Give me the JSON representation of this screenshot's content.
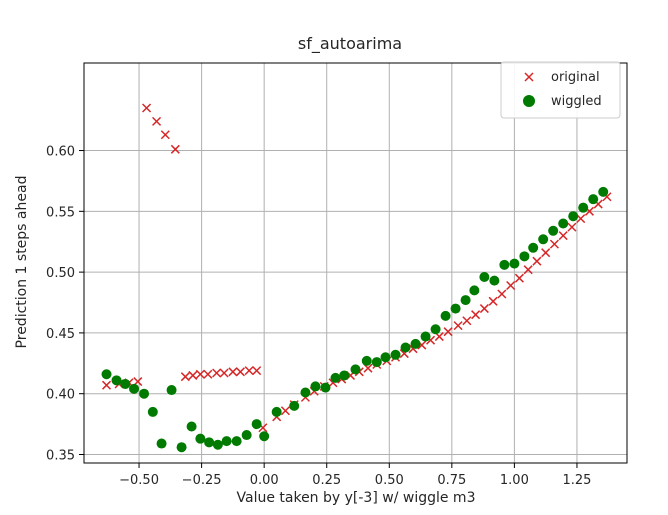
{
  "chart_data": {
    "type": "scatter",
    "title": "sf_autoarima",
    "xlabel": "Value taken by y[-3] w/ wiggle m3",
    "ylabel": "Prediction 1 steps ahead",
    "xlim": [
      -0.72,
      1.45
    ],
    "ylim": [
      0.343,
      0.672
    ],
    "xticks": [
      -0.5,
      -0.25,
      0.0,
      0.25,
      0.5,
      0.75,
      1.0,
      1.25
    ],
    "xtick_labels": [
      "−0.50",
      "−0.25",
      "0.00",
      "0.25",
      "0.50",
      "0.75",
      "1.00",
      "1.25"
    ],
    "yticks": [
      0.35,
      0.4,
      0.45,
      0.5,
      0.55,
      0.6
    ],
    "ytick_labels": [
      "0.35",
      "0.40",
      "0.45",
      "0.50",
      "0.55",
      "0.60"
    ],
    "grid": true,
    "legend_position": "top-right",
    "series": [
      {
        "name": "original",
        "marker": "x",
        "color": "#d62728",
        "points": [
          [
            -0.63,
            0.407
          ],
          [
            -0.58,
            0.408
          ],
          [
            -0.54,
            0.409
          ],
          [
            -0.505,
            0.41
          ],
          [
            -0.47,
            0.635
          ],
          [
            -0.43,
            0.624
          ],
          [
            -0.395,
            0.613
          ],
          [
            -0.355,
            0.601
          ],
          [
            -0.315,
            0.414
          ],
          [
            -0.285,
            0.415
          ],
          [
            -0.255,
            0.416
          ],
          [
            -0.225,
            0.416
          ],
          [
            -0.19,
            0.417
          ],
          [
            -0.16,
            0.417
          ],
          [
            -0.125,
            0.418
          ],
          [
            -0.095,
            0.418
          ],
          [
            -0.06,
            0.419
          ],
          [
            -0.03,
            0.419
          ],
          [
            -0.005,
            0.372
          ],
          [
            0.05,
            0.381
          ],
          [
            0.085,
            0.386
          ],
          [
            0.12,
            0.391
          ],
          [
            0.165,
            0.397
          ],
          [
            0.2,
            0.402
          ],
          [
            0.24,
            0.406
          ],
          [
            0.275,
            0.409
          ],
          [
            0.31,
            0.412
          ],
          [
            0.345,
            0.415
          ],
          [
            0.38,
            0.418
          ],
          [
            0.415,
            0.421
          ],
          [
            0.45,
            0.424
          ],
          [
            0.49,
            0.427
          ],
          [
            0.525,
            0.43
          ],
          [
            0.56,
            0.433
          ],
          [
            0.595,
            0.437
          ],
          [
            0.63,
            0.44
          ],
          [
            0.665,
            0.444
          ],
          [
            0.7,
            0.447
          ],
          [
            0.735,
            0.451
          ],
          [
            0.775,
            0.456
          ],
          [
            0.81,
            0.46
          ],
          [
            0.845,
            0.465
          ],
          [
            0.88,
            0.47
          ],
          [
            0.915,
            0.476
          ],
          [
            0.95,
            0.482
          ],
          [
            0.985,
            0.489
          ],
          [
            1.02,
            0.495
          ],
          [
            1.055,
            0.502
          ],
          [
            1.09,
            0.509
          ],
          [
            1.125,
            0.516
          ],
          [
            1.16,
            0.523
          ],
          [
            1.195,
            0.53
          ],
          [
            1.23,
            0.537
          ],
          [
            1.265,
            0.544
          ],
          [
            1.3,
            0.55
          ],
          [
            1.335,
            0.556
          ],
          [
            1.37,
            0.562
          ]
        ]
      },
      {
        "name": "wiggled",
        "marker": "o",
        "color": "#007a00",
        "points": [
          [
            -0.63,
            0.416
          ],
          [
            -0.59,
            0.411
          ],
          [
            -0.555,
            0.408
          ],
          [
            -0.52,
            0.404
          ],
          [
            -0.48,
            0.4
          ],
          [
            -0.445,
            0.385
          ],
          [
            -0.41,
            0.359
          ],
          [
            -0.37,
            0.403
          ],
          [
            -0.33,
            0.356
          ],
          [
            -0.29,
            0.373
          ],
          [
            -0.255,
            0.363
          ],
          [
            -0.22,
            0.36
          ],
          [
            -0.185,
            0.358
          ],
          [
            -0.15,
            0.361
          ],
          [
            -0.11,
            0.361
          ],
          [
            -0.07,
            0.366
          ],
          [
            -0.03,
            0.375
          ],
          [
            0.0,
            0.365
          ],
          [
            0.05,
            0.385
          ],
          [
            0.12,
            0.39
          ],
          [
            0.165,
            0.401
          ],
          [
            0.205,
            0.406
          ],
          [
            0.245,
            0.405
          ],
          [
            0.285,
            0.413
          ],
          [
            0.32,
            0.415
          ],
          [
            0.365,
            0.42
          ],
          [
            0.41,
            0.427
          ],
          [
            0.45,
            0.426
          ],
          [
            0.485,
            0.43
          ],
          [
            0.525,
            0.432
          ],
          [
            0.565,
            0.438
          ],
          [
            0.605,
            0.441
          ],
          [
            0.645,
            0.447
          ],
          [
            0.685,
            0.453
          ],
          [
            0.725,
            0.464
          ],
          [
            0.765,
            0.47
          ],
          [
            0.805,
            0.477
          ],
          [
            0.84,
            0.485
          ],
          [
            0.88,
            0.496
          ],
          [
            0.92,
            0.493
          ],
          [
            0.96,
            0.506
          ],
          [
            1.0,
            0.507
          ],
          [
            1.04,
            0.513
          ],
          [
            1.075,
            0.52
          ],
          [
            1.115,
            0.527
          ],
          [
            1.155,
            0.534
          ],
          [
            1.195,
            0.54
          ],
          [
            1.235,
            0.546
          ],
          [
            1.275,
            0.553
          ],
          [
            1.315,
            0.56
          ],
          [
            1.355,
            0.566
          ]
        ]
      }
    ]
  }
}
